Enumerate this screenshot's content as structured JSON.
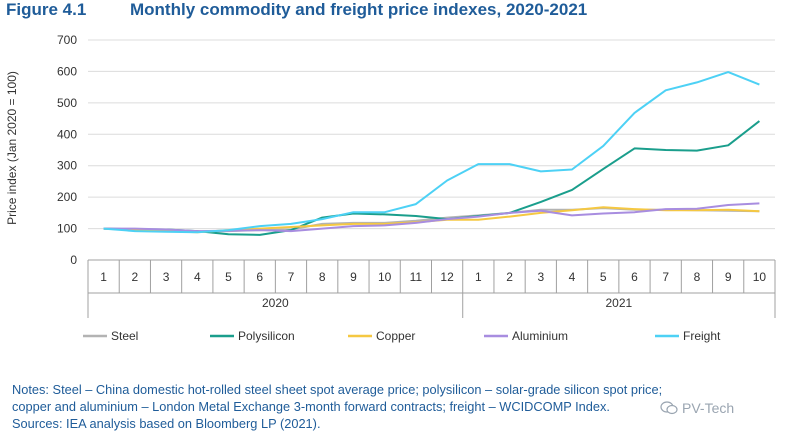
{
  "header": {
    "figure_number": "Figure 4.1",
    "title": "Monthly commodity and freight price indexes, 2020-2021"
  },
  "chart_data": {
    "type": "line",
    "title": "Monthly commodity and freight price indexes, 2020-2021",
    "ylabel": "Price index (Jan 2020 = 100)",
    "xlabel": "",
    "ylim": [
      0,
      700
    ],
    "yticks": [
      0,
      100,
      200,
      300,
      400,
      500,
      600,
      700
    ],
    "categories": [
      "1",
      "2",
      "3",
      "4",
      "5",
      "6",
      "7",
      "8",
      "9",
      "10",
      "11",
      "12",
      "1",
      "2",
      "3",
      "4",
      "5",
      "6",
      "7",
      "8",
      "9",
      "10"
    ],
    "year_groups": [
      {
        "label": "2020",
        "count": 12
      },
      {
        "label": "2021",
        "count": 10
      }
    ],
    "legend_position": "bottom",
    "grid": true,
    "series": [
      {
        "name": "Steel",
        "color": "#b3b3b3",
        "values": [
          100,
          98,
          96,
          90,
          92,
          95,
          97,
          115,
          118,
          118,
          125,
          135,
          142,
          150,
          160,
          160,
          165,
          160,
          160,
          158,
          157,
          155
        ]
      },
      {
        "name": "Polysilicon",
        "color": "#1a9e8c",
        "values": [
          100,
          98,
          97,
          92,
          82,
          80,
          95,
          135,
          148,
          145,
          140,
          130,
          140,
          150,
          185,
          223,
          290,
          355,
          350,
          348,
          365,
          442
        ]
      },
      {
        "name": "Copper",
        "color": "#f5c842",
        "values": [
          100,
          95,
          92,
          88,
          95,
          100,
          105,
          110,
          115,
          115,
          120,
          128,
          128,
          138,
          150,
          158,
          168,
          162,
          158,
          158,
          160,
          155
        ]
      },
      {
        "name": "Aluminium",
        "color": "#a88de0",
        "values": [
          100,
          100,
          97,
          92,
          93,
          95,
          92,
          100,
          108,
          110,
          118,
          130,
          138,
          150,
          157,
          142,
          148,
          152,
          162,
          163,
          175,
          180
        ]
      },
      {
        "name": "Freight",
        "color": "#4dd1f5",
        "values": [
          100,
          92,
          90,
          88,
          95,
          108,
          115,
          130,
          152,
          152,
          178,
          253,
          305,
          305,
          282,
          288,
          363,
          468,
          540,
          565,
          598,
          558
        ]
      }
    ]
  },
  "notes": {
    "text": "Notes: Steel – China domestic hot-rolled steel sheet spot average price; polysilicon – solar-grade silicon spot price; copper and aluminium – London Metal Exchange 3-month forward contracts; freight – WCIDCOMP Index.",
    "sources": "Sources: IEA analysis based on Bloomberg LP (2021)."
  },
  "watermark": {
    "text": "PV-Tech"
  }
}
